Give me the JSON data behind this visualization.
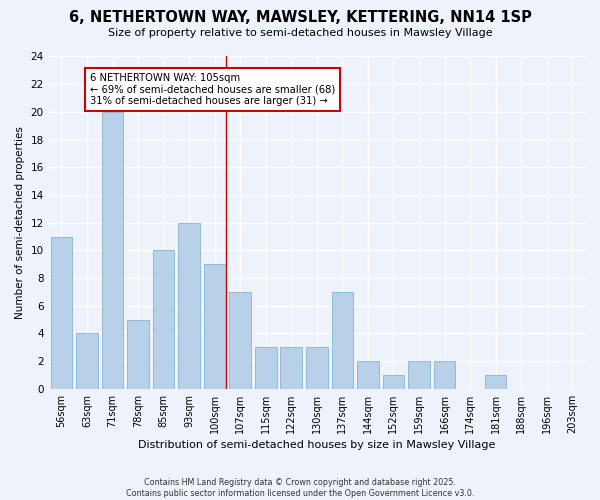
{
  "title": "6, NETHERTOWN WAY, MAWSLEY, KETTERING, NN14 1SP",
  "subtitle": "Size of property relative to semi-detached houses in Mawsley Village",
  "xlabel": "Distribution of semi-detached houses by size in Mawsley Village",
  "ylabel": "Number of semi-detached properties",
  "categories": [
    "56sqm",
    "63sqm",
    "71sqm",
    "78sqm",
    "85sqm",
    "93sqm",
    "100sqm",
    "107sqm",
    "115sqm",
    "122sqm",
    "130sqm",
    "137sqm",
    "144sqm",
    "152sqm",
    "159sqm",
    "166sqm",
    "174sqm",
    "181sqm",
    "188sqm",
    "196sqm",
    "203sqm"
  ],
  "values": [
    11,
    4,
    20,
    5,
    10,
    12,
    9,
    7,
    3,
    3,
    3,
    7,
    2,
    1,
    2,
    2,
    0,
    1,
    0,
    0,
    0
  ],
  "bar_color": "#b8d0e8",
  "bar_edgecolor": "#7aA8cc",
  "annotation_title": "6 NETHERTOWN WAY: 105sqm",
  "annotation_line1": "← 69% of semi-detached houses are smaller (68)",
  "annotation_line2": "31% of semi-detached houses are larger (31) →",
  "annotation_box_color": "#cc0000",
  "ylim": [
    0,
    24
  ],
  "yticks": [
    0,
    2,
    4,
    6,
    8,
    10,
    12,
    14,
    16,
    18,
    20,
    22,
    24
  ],
  "background_color": "#eef2fb",
  "grid_color": "#ffffff",
  "footer_line1": "Contains HM Land Registry data © Crown copyright and database right 2025.",
  "footer_line2": "Contains public sector information licensed under the Open Government Licence v3.0."
}
